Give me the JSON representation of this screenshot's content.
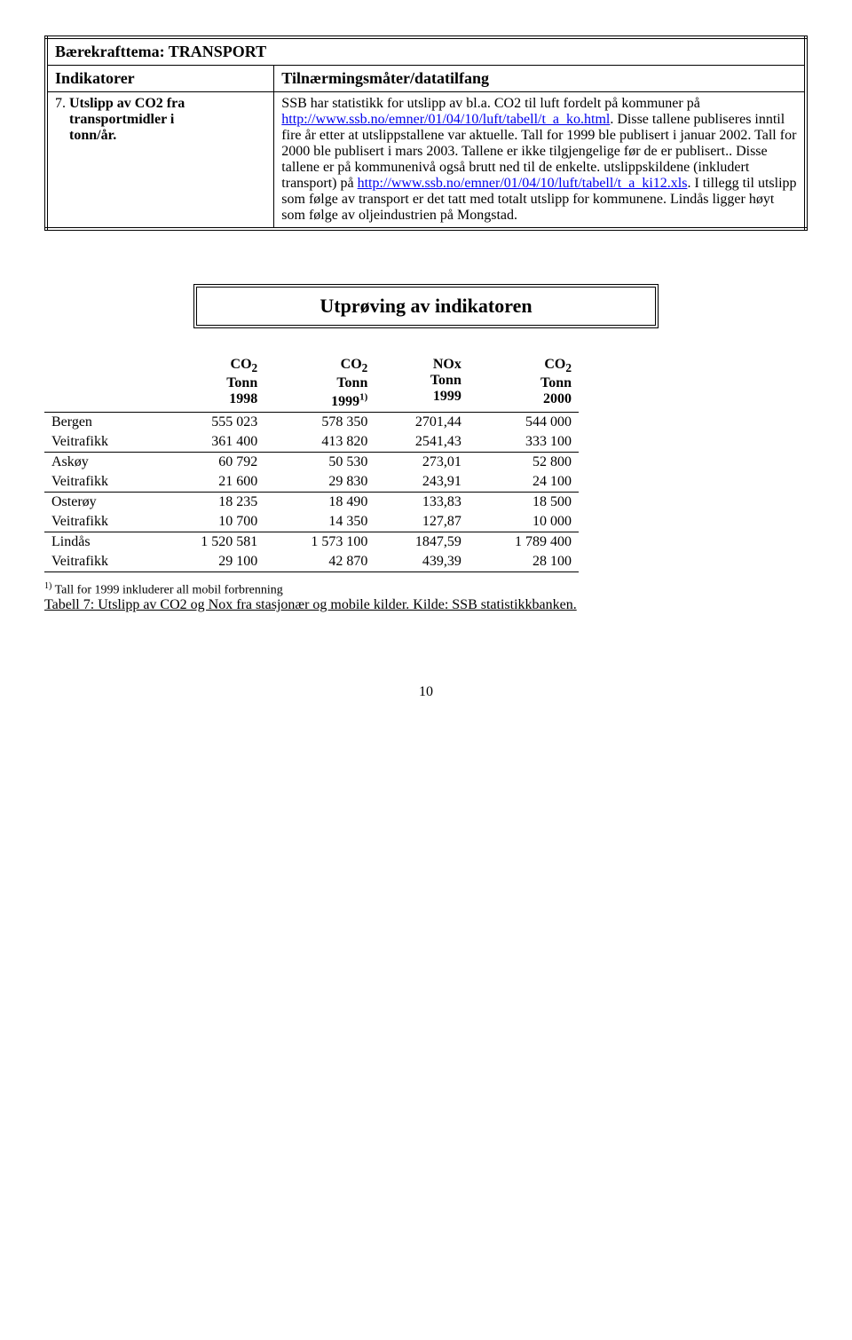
{
  "theme_line": "Bærekrafttema: TRANSPORT",
  "header": {
    "col1": "Indikatorer",
    "col2": "Tilnærmingsmåter/datatilfang"
  },
  "indicator": {
    "number": "7.",
    "title_line1": "Utslipp av CO2 fra",
    "title_line2": "transportmidler i",
    "title_line3": "tonn/år.",
    "desc_p1a": "SSB har statistikk for utslipp av bl.a. CO2 til luft fordelt på kommuner på ",
    "desc_link1": "http://www.ssb.no/emner/01/04/10/luft/tabell/t_a_ko.html",
    "desc_p1b": ". Disse tallene publiseres inntil fire år etter at utslippstallene var aktuelle. Tall for 1999 ble publisert i  januar 2002. Tall for 2000 ble publisert i mars 2003. Tallene er ikke tilgjengelige før de er publisert.. Disse tallene er på kommunenivå også brutt ned til de enkelte. utslippskildene (inkludert transport) på ",
    "desc_link2": "http://www.ssb.no/emner/01/04/10/luft/tabell/t_a_ki12.xls",
    "desc_p1c": ". I tillegg til utslipp som følge av transport er det tatt med totalt utslipp for kommunene. Lindås ligger høyt som følge av oljeindustrien på Mongstad."
  },
  "section_title": "Utprøving av indikatoren",
  "data_table": {
    "headers": [
      {
        "line1": "",
        "line2": "",
        "line3": ""
      },
      {
        "line1": "CO",
        "sub": "2",
        "line2": "Tonn",
        "line3": "1998"
      },
      {
        "line1": "CO",
        "sub": "2",
        "line2": "Tonn",
        "line3": "1999",
        "sup": "1)"
      },
      {
        "line1": "NOx",
        "line2": "Tonn",
        "line3": "1999"
      },
      {
        "line1": "CO",
        "sub": "2",
        "line2": "Tonn",
        "line3": "2000"
      }
    ],
    "groups": [
      {
        "rows": [
          {
            "label": "Bergen",
            "c1": "555 023",
            "c2": "578 350",
            "c3": "2701,44",
            "c4": "544 000"
          },
          {
            "label": "Veitrafikk",
            "c1": "361 400",
            "c2": "413 820",
            "c3": "2541,43",
            "c4": "333 100"
          }
        ]
      },
      {
        "rows": [
          {
            "label": "Askøy",
            "c1": "60 792",
            "c2": "50 530",
            "c3": "273,01",
            "c4": "52 800"
          },
          {
            "label": "Veitrafikk",
            "c1": "21 600",
            "c2": "29 830",
            "c3": "243,91",
            "c4": "24 100"
          }
        ]
      },
      {
        "rows": [
          {
            "label": "Osterøy",
            "c1": "18 235",
            "c2": "18 490",
            "c3": "133,83",
            "c4": "18 500"
          },
          {
            "label": "Veitrafikk",
            "c1": "10 700",
            "c2": "14 350",
            "c3": "127,87",
            "c4": "10 000"
          }
        ]
      },
      {
        "rows": [
          {
            "label": "Lindås",
            "c1": "1 520 581",
            "c2": "1 573 100",
            "c3": "1847,59",
            "c4": "1 789 400"
          },
          {
            "label": "Veitrafikk",
            "c1": "29 100",
            "c2": "42 870",
            "c3": "439,39",
            "c4": "28 100"
          }
        ]
      }
    ]
  },
  "footnote": {
    "sup": "1)",
    "text": " Tall for 1999 inkluderer all mobil forbrenning"
  },
  "caption": "Tabell 7: Utslipp av CO2 og Nox fra stasjonær og mobile kilder. Kilde: SSB statistikkbanken.",
  "page_number": "10"
}
